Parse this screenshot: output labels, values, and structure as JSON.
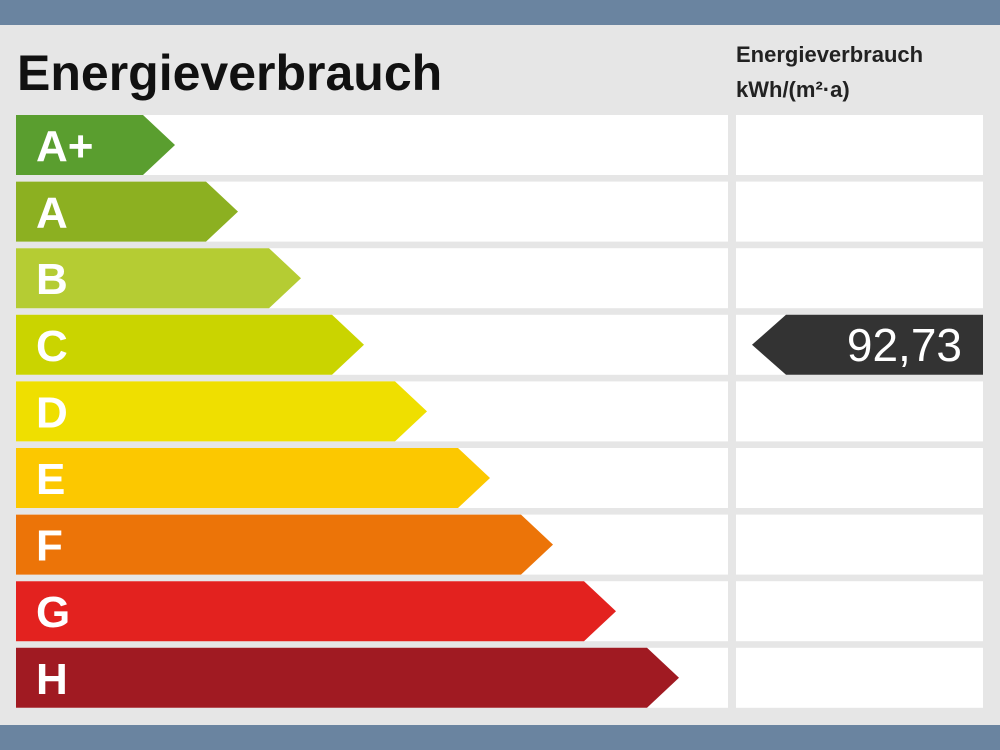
{
  "header": {
    "title": "Energieverbrauch",
    "unit_title": "Energieverbrauch",
    "unit": "kWh/(m²·a)"
  },
  "classes": [
    {
      "label": "A+",
      "color": "#5a9e2f"
    },
    {
      "label": "A",
      "color": "#8cb021"
    },
    {
      "label": "B",
      "color": "#b5cc33"
    },
    {
      "label": "C",
      "color": "#cad400",
      "value": "92,73"
    },
    {
      "label": "D",
      "color": "#efdf00"
    },
    {
      "label": "E",
      "color": "#fcc800"
    },
    {
      "label": "F",
      "color": "#ec7408"
    },
    {
      "label": "G",
      "color": "#e3221f"
    },
    {
      "label": "H",
      "color": "#a01a22"
    }
  ]
}
